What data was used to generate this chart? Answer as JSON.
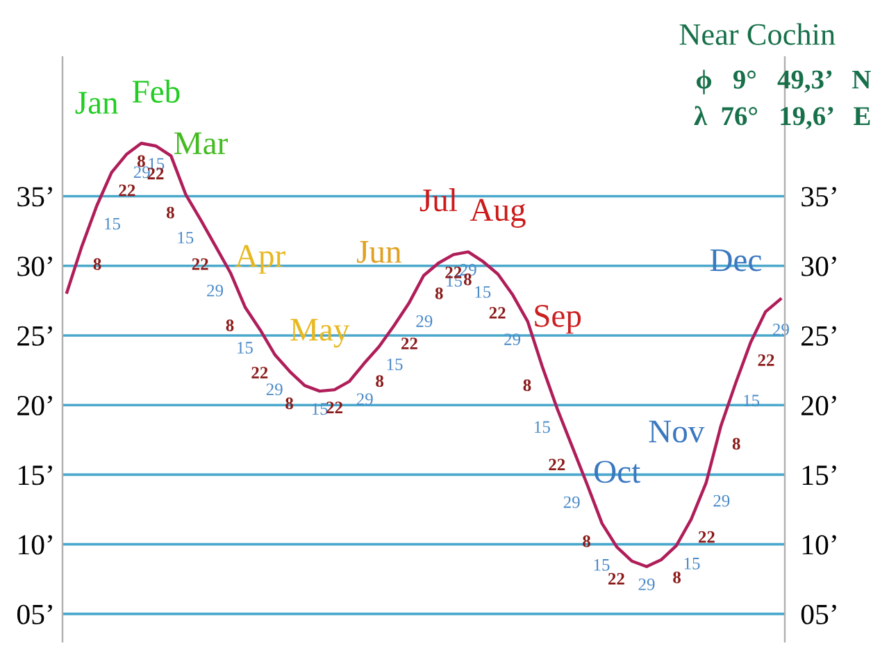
{
  "chart_data": {
    "type": "line",
    "title": "Near Cochin",
    "categories": [
      null,
      null,
      null,
      null,
      null,
      null,
      null,
      null,
      null,
      null,
      null,
      null,
      null,
      null,
      null,
      null,
      null,
      null,
      null,
      null,
      null,
      null,
      null,
      null,
      null,
      null,
      null,
      null,
      null,
      null,
      null,
      null,
      null,
      null,
      null,
      null,
      null,
      null,
      null,
      null,
      null,
      null,
      null,
      null,
      null,
      null,
      null,
      null,
      null
    ],
    "series": [
      {
        "color": "#b01e5a",
        "values": [
          28.1,
          31.4,
          34.3,
          36.7,
          38.0,
          38.8,
          38.6,
          37.9,
          35.1,
          33.3,
          31.4,
          29.5,
          27.0,
          25.4,
          23.6,
          22.4,
          21.4,
          21.0,
          21.1,
          21.7,
          23.0,
          24.2,
          25.7,
          27.3,
          29.3,
          30.2,
          30.8,
          31.0,
          30.3,
          29.4,
          27.9,
          26.0,
          22.7,
          19.7,
          17.0,
          14.3,
          11.5,
          9.8,
          8.8,
          8.4,
          8.9,
          9.9,
          11.8,
          14.4,
          18.5,
          21.6,
          24.5,
          26.7,
          27.6
        ]
      }
    ],
    "ylim": [
      3,
      45
    ],
    "yticks": [
      {
        "value": 5,
        "label": "05’"
      },
      {
        "value": 10,
        "label": "10’"
      },
      {
        "value": 15,
        "label": "15’"
      },
      {
        "value": 20,
        "label": "20’"
      },
      {
        "value": 25,
        "label": "25’"
      },
      {
        "value": 30,
        "label": "30’"
      },
      {
        "value": 35,
        "label": "35’"
      }
    ],
    "y2lim": [
      3,
      45
    ],
    "y2ticks": [
      {
        "value": 5,
        "label": "05’"
      },
      {
        "value": 10,
        "label": "10’"
      },
      {
        "value": 15,
        "label": "15’"
      },
      {
        "value": 20,
        "label": "20’"
      },
      {
        "value": 25,
        "label": "25’"
      },
      {
        "value": 30,
        "label": "30’"
      },
      {
        "value": 35,
        "label": "35’"
      }
    ],
    "grid": "y",
    "tick_labels": "y",
    "annotations": [
      "Jan",
      "8",
      "15",
      "22",
      "29",
      "Feb",
      "8",
      "15",
      "22",
      "Mar",
      "8",
      "15",
      "22",
      "29",
      "Apr",
      "8",
      "15",
      "22",
      "29",
      "May",
      "8",
      "15",
      "22",
      "29",
      "Jun",
      "8",
      "15",
      "22",
      "29",
      "Jul",
      "8",
      "15",
      "22",
      "29",
      "Aug",
      "8",
      "15",
      "22",
      "29",
      "Sep",
      "8",
      "15",
      "22",
      "29",
      "Oct",
      "8",
      "15",
      "22",
      "29",
      "Nov",
      "8",
      "15",
      "22",
      "29",
      "Dec",
      "8",
      "15",
      "22",
      "29",
      "ϕ   9°   49,3’   N",
      "λ  76°   19,6’   E"
    ]
  }
}
